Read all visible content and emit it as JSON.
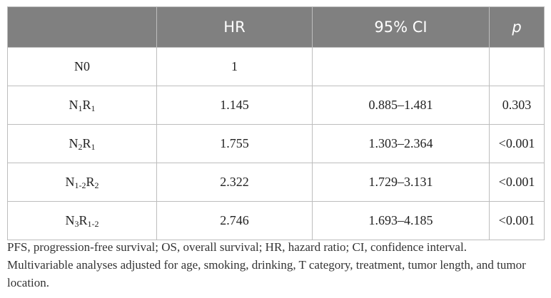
{
  "table": {
    "headers": [
      "",
      "HR",
      "95% CI",
      "p"
    ],
    "rows": [
      {
        "group": {
          "parts": [
            {
              "t": "N0"
            }
          ]
        },
        "hr": "1",
        "ci": "",
        "p": ""
      },
      {
        "group": {
          "parts": [
            {
              "t": "N"
            },
            {
              "sub": "1"
            },
            {
              "t": "R"
            },
            {
              "sub": "1"
            }
          ]
        },
        "hr": "1.145",
        "ci": "0.885–1.481",
        "p": "0.303"
      },
      {
        "group": {
          "parts": [
            {
              "t": "N"
            },
            {
              "sub": "2"
            },
            {
              "t": "R"
            },
            {
              "sub": "1"
            }
          ]
        },
        "hr": "1.755",
        "ci": "1.303–2.364",
        "p": "<0.001"
      },
      {
        "group": {
          "parts": [
            {
              "t": "N"
            },
            {
              "sub": "1-2"
            },
            {
              "t": "R"
            },
            {
              "sub": "2"
            }
          ]
        },
        "hr": "2.322",
        "ci": "1.729–3.131",
        "p": "<0.001"
      },
      {
        "group": {
          "parts": [
            {
              "t": "N"
            },
            {
              "sub": "3"
            },
            {
              "t": "R"
            },
            {
              "sub": "1-2"
            }
          ]
        },
        "hr": "2.746",
        "ci": "1.693–4.185",
        "p": "<0.001"
      }
    ]
  },
  "footnote": {
    "line1": "PFS, progression-free survival; OS, overall survival; HR, hazard ratio; CI, confidence interval.",
    "line2": "Multivariable analyses adjusted for age, smoking, drinking, T category, treatment, tumor length, and tumor location."
  },
  "colors": {
    "header_bg": "#808080",
    "header_text": "#ffffff",
    "border": "#bdbdbd"
  }
}
